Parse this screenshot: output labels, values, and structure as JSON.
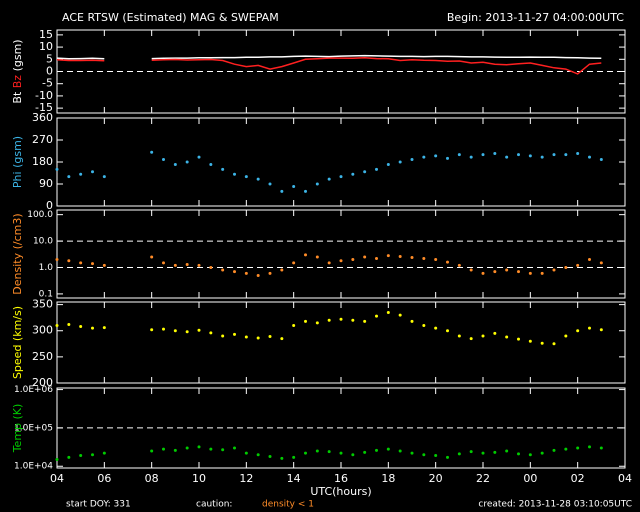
{
  "header": {
    "title": "ACE RTSW (Estimated) MAG & SWEPAM",
    "begin": "Begin: 2013-11-27 04:00:00UTC"
  },
  "footer": {
    "start": "start DOY: 331",
    "caution": "caution:",
    "caution_note": "density < 1",
    "created": "created: 2013-11-28 03:10:05UTC"
  },
  "chart_data": [
    {
      "type": "line",
      "ylabel": "(gsm)",
      "xlim": [
        4,
        28
      ],
      "ylim": [
        -17,
        17
      ],
      "yticks": [
        -15,
        -10,
        -5,
        0,
        5,
        10,
        15
      ],
      "ref_lines": [
        0
      ],
      "x": [
        4,
        4.5,
        5,
        5.5,
        6,
        7,
        8,
        8.5,
        9,
        9.5,
        10,
        10.5,
        11,
        11.5,
        12,
        12.5,
        13,
        13.5,
        14,
        14.5,
        15,
        15.5,
        16,
        16.5,
        17,
        17.5,
        18,
        18.5,
        19,
        19.5,
        20,
        20.5,
        21,
        21.5,
        22,
        22.5,
        23,
        23.5,
        24,
        24.5,
        25,
        25.5,
        26,
        26.5,
        27
      ],
      "series": [
        {
          "name": "Bt",
          "color": "#ffffff",
          "values": [
            5.5,
            5.2,
            5.3,
            5.4,
            5.2,
            null,
            5.3,
            5.4,
            5.5,
            5.5,
            5.6,
            5.6,
            5.7,
            5.7,
            5.8,
            5.8,
            6,
            6,
            6.2,
            6.3,
            6.2,
            6.1,
            6.3,
            6.4,
            6.5,
            6.4,
            6.3,
            6.2,
            6.2,
            6.1,
            6.2,
            6.2,
            6.1,
            6,
            6,
            5.9,
            5.8,
            5.8,
            5.9,
            5.8,
            5.8,
            5.7,
            5.6,
            5.5,
            5.4
          ]
        },
        {
          "name": "Bz",
          "color": "#ff2020",
          "values": [
            4.8,
            4.5,
            4.5,
            4.6,
            4.4,
            null,
            4.6,
            4.8,
            4.9,
            4.7,
            4.8,
            4.9,
            4.5,
            3,
            2,
            2.5,
            1,
            2,
            3.5,
            5,
            5.2,
            5.5,
            5.5,
            5.4,
            5.6,
            5.3,
            5.2,
            4.5,
            4.8,
            4.6,
            4.5,
            4.2,
            4.3,
            3.5,
            3.8,
            3,
            2.8,
            3.2,
            3.5,
            2.5,
            1.5,
            1,
            -1,
            3,
            3.5
          ]
        }
      ]
    },
    {
      "type": "scatter",
      "ylabel": "Phi (gsm)",
      "xlim": [
        4,
        28
      ],
      "ylim": [
        0,
        360
      ],
      "yticks": [
        0,
        90,
        180,
        270,
        360
      ],
      "x": [
        4,
        4.5,
        5,
        5.5,
        6,
        7,
        8,
        8.5,
        9,
        9.5,
        10,
        10.5,
        11,
        11.5,
        12,
        12.5,
        13,
        13.5,
        14,
        14.5,
        15,
        15.5,
        16,
        16.5,
        17,
        17.5,
        18,
        18.5,
        19,
        19.5,
        20,
        20.5,
        21,
        21.5,
        22,
        22.5,
        23,
        23.5,
        24,
        24.5,
        25,
        25.5,
        26,
        26.5,
        27
      ],
      "series": [
        {
          "color": "#3cb4e6",
          "values": [
            150,
            120,
            130,
            140,
            120,
            null,
            220,
            190,
            170,
            180,
            200,
            170,
            150,
            130,
            120,
            110,
            90,
            60,
            80,
            60,
            90,
            110,
            120,
            130,
            140,
            150,
            170,
            180,
            190,
            200,
            205,
            195,
            210,
            200,
            210,
            215,
            200,
            210,
            205,
            200,
            210,
            210,
            215,
            200,
            190
          ]
        }
      ]
    },
    {
      "type": "scatter",
      "ylabel": "Density (/cm3)",
      "log": true,
      "xlim": [
        4,
        28
      ],
      "ylim": [
        0.07,
        150
      ],
      "yticks": [
        0.1,
        {
          "value": 1,
          "label": "1.0"
        },
        {
          "value": 10,
          "label": "10.0"
        },
        {
          "value": 100,
          "label": "100.0"
        }
      ],
      "ref_lines": [
        1,
        10
      ],
      "x": [
        4,
        4.5,
        5,
        5.5,
        6,
        7,
        8,
        8.5,
        9,
        9.5,
        10,
        10.5,
        11,
        11.5,
        12,
        12.5,
        13,
        13.5,
        14,
        14.5,
        15,
        15.5,
        16,
        16.5,
        17,
        17.5,
        18,
        18.5,
        19,
        19.5,
        20,
        20.5,
        21,
        21.5,
        22,
        22.5,
        23,
        23.5,
        24,
        24.5,
        25,
        25.5,
        26,
        26.5,
        27
      ],
      "series": [
        {
          "color": "#ff8c28",
          "values": [
            2,
            1.8,
            1.5,
            1.4,
            1.2,
            null,
            2.5,
            1.5,
            1.2,
            1.3,
            1.2,
            1,
            0.8,
            0.7,
            0.6,
            0.5,
            0.6,
            0.8,
            1.5,
            3,
            2.5,
            1.5,
            1.8,
            2,
            2.5,
            2.2,
            2.8,
            2.6,
            2.4,
            2.2,
            2,
            1.6,
            1.2,
            0.8,
            0.6,
            0.7,
            0.8,
            0.7,
            0.6,
            0.6,
            0.8,
            1,
            1.2,
            2,
            1.5
          ]
        }
      ]
    },
    {
      "type": "scatter",
      "ylabel": "Speed (km/s)",
      "xlim": [
        4,
        28
      ],
      "ylim": [
        200,
        355
      ],
      "yticks": [
        200,
        250,
        300,
        350
      ],
      "x": [
        4,
        4.5,
        5,
        5.5,
        6,
        7,
        8,
        8.5,
        9,
        9.5,
        10,
        10.5,
        11,
        11.5,
        12,
        12.5,
        13,
        13.5,
        14,
        14.5,
        15,
        15.5,
        16,
        16.5,
        17,
        17.5,
        18,
        18.5,
        19,
        19.5,
        20,
        20.5,
        21,
        21.5,
        22,
        22.5,
        23,
        23.5,
        24,
        24.5,
        25,
        25.5,
        26,
        26.5,
        27
      ],
      "series": [
        {
          "color": "#ffff00",
          "values": [
            310,
            312,
            308,
            305,
            306,
            null,
            302,
            303,
            300,
            298,
            301,
            296,
            290,
            293,
            288,
            286,
            289,
            285,
            310,
            318,
            315,
            320,
            322,
            320,
            318,
            328,
            335,
            330,
            318,
            310,
            305,
            300,
            290,
            285,
            290,
            295,
            288,
            284,
            280,
            276,
            275,
            290,
            300,
            305,
            302
          ]
        }
      ]
    },
    {
      "type": "scatter",
      "ylabel": "Temp (K)",
      "log": true,
      "xlim": [
        4,
        28
      ],
      "ylim": [
        9000,
        1100000
      ],
      "yticks": [
        {
          "value": 10000,
          "label": "1.0E+04"
        },
        {
          "value": 100000,
          "label": "1.0E+05"
        },
        {
          "value": 1000000,
          "label": "1.0E+06"
        }
      ],
      "ref_lines": [
        100000
      ],
      "xlabel": "UTC(hours)",
      "xticks": [
        {
          "value": 4,
          "label": "04"
        },
        {
          "value": 6,
          "label": "06"
        },
        {
          "value": 8,
          "label": "08"
        },
        10,
        12,
        14,
        16,
        18,
        20,
        22,
        {
          "value": 24,
          "label": "00"
        },
        {
          "value": 26,
          "label": "02"
        },
        {
          "value": 28,
          "label": "04"
        }
      ],
      "x": [
        4,
        4.5,
        5,
        5.5,
        6,
        7,
        8,
        8.5,
        9,
        9.5,
        10,
        10.5,
        11,
        11.5,
        12,
        12.5,
        13,
        13.5,
        14,
        14.5,
        15,
        15.5,
        16,
        16.5,
        17,
        17.5,
        18,
        18.5,
        19,
        19.5,
        20,
        20.5,
        21,
        21.5,
        22,
        22.5,
        23,
        23.5,
        24,
        24.5,
        25,
        25.5,
        26,
        26.5,
        27
      ],
      "series": [
        {
          "color": "#00cc00",
          "values": [
            15000,
            17000,
            19000,
            20000,
            22000,
            null,
            25000,
            28000,
            26000,
            30000,
            32000,
            28000,
            27000,
            30000,
            22000,
            20000,
            18000,
            16000,
            17000,
            22000,
            25000,
            24000,
            22000,
            20000,
            23000,
            26000,
            28000,
            25000,
            22000,
            20000,
            19000,
            17000,
            21000,
            24000,
            22000,
            23000,
            25000,
            21000,
            20000,
            22000,
            26000,
            28000,
            30000,
            32000,
            30000
          ]
        }
      ]
    }
  ]
}
